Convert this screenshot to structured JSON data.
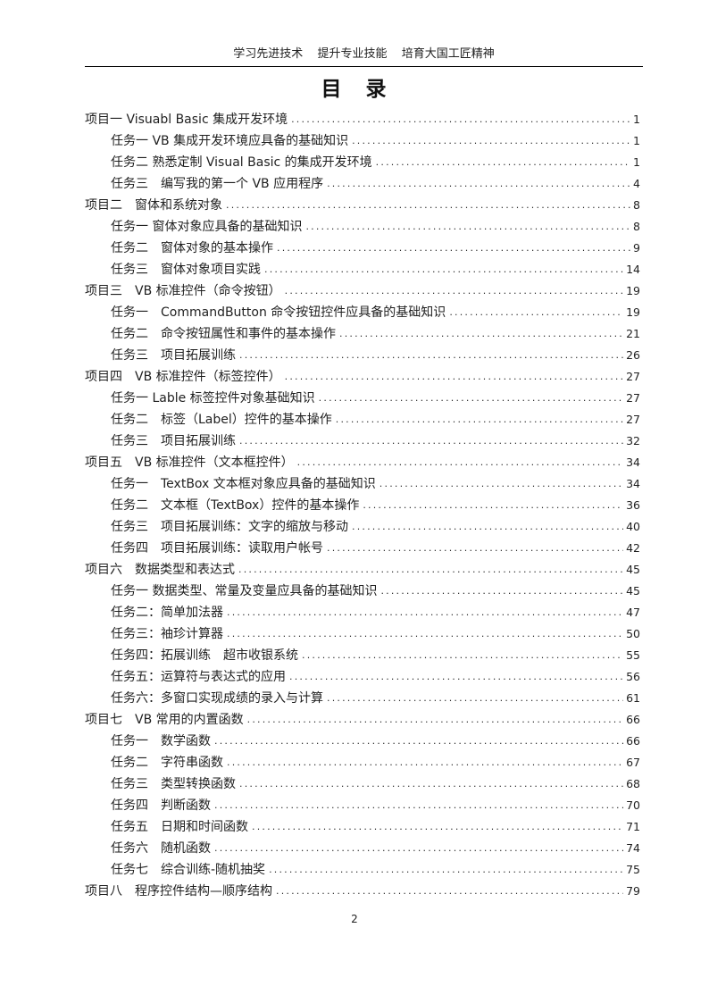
{
  "header": {
    "slogan": "学习先进技术　 提升专业技能　 培育大国工匠精神"
  },
  "title": "目　录",
  "toc": {
    "entries": [
      {
        "level": 1,
        "label": "项目一 Visuabl Basic 集成开发环境",
        "page": "1"
      },
      {
        "level": 2,
        "label": "任务一 VB 集成开发环境应具备的基础知识",
        "page": "1"
      },
      {
        "level": 2,
        "label": "任务二 熟悉定制 Visual Basic 的集成开发环境",
        "page": "1"
      },
      {
        "level": 2,
        "label": "任务三　编写我的第一个 VB 应用程序",
        "page": "4"
      },
      {
        "level": 1,
        "label": "项目二　窗体和系统对象",
        "page": "8"
      },
      {
        "level": 2,
        "label": "任务一 窗体对象应具备的基础知识",
        "page": "8"
      },
      {
        "level": 2,
        "label": "任务二　窗体对象的基本操作",
        "page": "9"
      },
      {
        "level": 2,
        "label": "任务三　窗体对象项目实践",
        "page": "14"
      },
      {
        "level": 1,
        "label": "项目三　VB 标准控件（命令按钮）",
        "page": "19"
      },
      {
        "level": 2,
        "label": "任务一　CommandButton 命令按钮控件应具备的基础知识",
        "page": "19"
      },
      {
        "level": 2,
        "label": "任务二　命令按钮属性和事件的基本操作",
        "page": "21"
      },
      {
        "level": 2,
        "label": "任务三　项目拓展训练",
        "page": "26"
      },
      {
        "level": 1,
        "label": "项目四　VB 标准控件（标签控件）",
        "page": "27"
      },
      {
        "level": 2,
        "label": "任务一 Lable 标签控件对象基础知识",
        "page": "27"
      },
      {
        "level": 2,
        "label": "任务二　标签（Label）控件的基本操作",
        "page": "27"
      },
      {
        "level": 2,
        "label": "任务三　项目拓展训练",
        "page": "32"
      },
      {
        "level": 1,
        "label": "项目五　VB 标准控件（文本框控件）",
        "page": "34"
      },
      {
        "level": 2,
        "label": "任务一　TextBox 文本框对象应具备的基础知识",
        "page": "34"
      },
      {
        "level": 2,
        "label": "任务二　文本框（TextBox）控件的基本操作",
        "page": "36"
      },
      {
        "level": 2,
        "label": "任务三　项目拓展训练：文字的缩放与移动",
        "page": "40"
      },
      {
        "level": 2,
        "label": "任务四　项目拓展训练：读取用户帐号",
        "page": "42"
      },
      {
        "level": 1,
        "label": "项目六　数据类型和表达式",
        "page": "45"
      },
      {
        "level": 2,
        "label": "任务一 数据类型、常量及变量应具备的基础知识",
        "page": "45"
      },
      {
        "level": 2,
        "label": "任务二：简单加法器",
        "page": "47"
      },
      {
        "level": 2,
        "label": "任务三：袖珍计算器",
        "page": "50"
      },
      {
        "level": 2,
        "label": "任务四：拓展训练　超市收银系统",
        "page": "55"
      },
      {
        "level": 2,
        "label": "任务五：运算符与表达式的应用",
        "page": "56"
      },
      {
        "level": 2,
        "label": "任务六：多窗口实现成绩的录入与计算",
        "page": "61"
      },
      {
        "level": 1,
        "label": "项目七　VB 常用的内置函数",
        "page": "66"
      },
      {
        "level": 2,
        "label": "任务一　数学函数",
        "page": "66"
      },
      {
        "level": 2,
        "label": "任务二　字符串函数",
        "page": "67"
      },
      {
        "level": 2,
        "label": "任务三　类型转换函数",
        "page": "68"
      },
      {
        "level": 2,
        "label": "任务四　判断函数",
        "page": "70"
      },
      {
        "level": 2,
        "label": "任务五　日期和时间函数",
        "page": "71"
      },
      {
        "level": 2,
        "label": "任务六　随机函数",
        "page": "74"
      },
      {
        "level": 2,
        "label": "任务七　综合训练-随机抽奖",
        "page": "75"
      },
      {
        "level": 1,
        "label": "项目八　程序控件结构—顺序结构",
        "page": "79"
      }
    ]
  },
  "footer": {
    "page_number": "2"
  }
}
